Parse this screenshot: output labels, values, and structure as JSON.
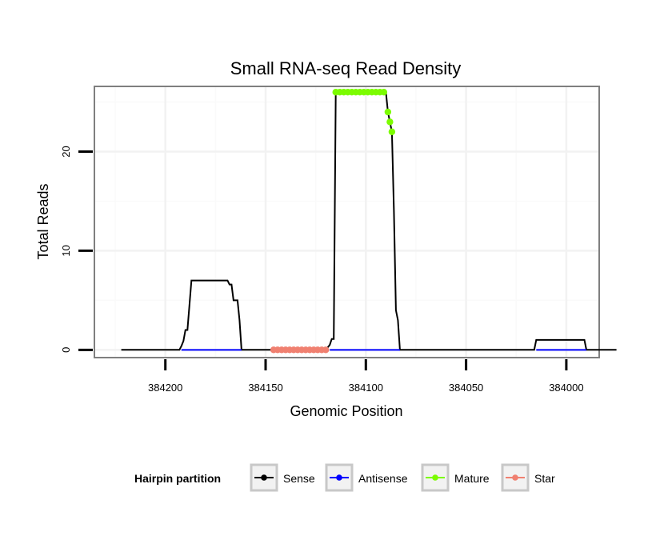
{
  "chart_data": {
    "type": "line",
    "title": "Small RNA-seq Read Density",
    "xlabel": "Genomic Position",
    "ylabel": "Total Reads",
    "xlim_reversed": [
      384235,
      383984
    ],
    "ylim": [
      -0.7,
      26.5
    ],
    "x_ticks": [
      384200,
      384150,
      384100,
      384050,
      384000
    ],
    "x_tick_labels": [
      "384200",
      "384150",
      "384100",
      "384050",
      "384000"
    ],
    "y_ticks": [
      0,
      10,
      20
    ],
    "y_tick_labels": [
      "0",
      "10",
      "20"
    ],
    "grid": true,
    "legend": {
      "title": "Hairpin partition",
      "position": "bottom",
      "entries": [
        {
          "name": "Sense",
          "color": "#000000"
        },
        {
          "name": "Antisense",
          "color": "#0000ff"
        },
        {
          "name": "Mature",
          "color": "#7cfc00"
        },
        {
          "name": "Star",
          "color": "#f08070"
        }
      ]
    },
    "series": [
      {
        "name": "Sense",
        "color": "#000000",
        "style": "line",
        "points": [
          [
            384222,
            0
          ],
          [
            384193,
            0
          ],
          [
            384192,
            0.4
          ],
          [
            384191,
            0.9
          ],
          [
            384190,
            2.0
          ],
          [
            384189,
            2.0
          ],
          [
            384188,
            4.5
          ],
          [
            384187,
            7.0
          ],
          [
            384169,
            7.0
          ],
          [
            384168,
            6.6
          ],
          [
            384167,
            6.6
          ],
          [
            384166,
            5.0
          ],
          [
            384165,
            5.0
          ],
          [
            384164,
            5.0
          ],
          [
            384163,
            3.0
          ],
          [
            384162,
            0
          ],
          [
            384120,
            0
          ],
          [
            384118,
            0.5
          ],
          [
            384117,
            1.1
          ],
          [
            384116,
            1.1
          ],
          [
            384115,
            26.0
          ],
          [
            384090,
            26.0
          ],
          [
            384089,
            24.0
          ],
          [
            384088,
            23.0
          ],
          [
            384087,
            22.0
          ],
          [
            384086,
            14.0
          ],
          [
            384085,
            4.0
          ],
          [
            384084,
            3.0
          ],
          [
            384083,
            0
          ],
          [
            384016,
            0
          ],
          [
            384015,
            1.0
          ],
          [
            383991,
            1.0
          ],
          [
            383990,
            0
          ],
          [
            383975,
            0
          ]
        ]
      },
      {
        "name": "Antisense",
        "color": "#0000ff",
        "style": "line",
        "segments": [
          [
            [
              384192,
              0
            ],
            [
              384162,
              0
            ]
          ],
          [
            [
              384118,
              0
            ],
            [
              384083,
              0
            ]
          ],
          [
            [
              384015,
              0
            ],
            [
              383990,
              0
            ]
          ]
        ]
      },
      {
        "name": "Mature",
        "color": "#7cfc00",
        "style": "points",
        "points": [
          [
            384115,
            26.0
          ],
          [
            384113,
            26.0
          ],
          [
            384111,
            26.0
          ],
          [
            384109,
            26.0
          ],
          [
            384107,
            26.0
          ],
          [
            384105,
            26.0
          ],
          [
            384103,
            26.0
          ],
          [
            384101,
            26.0
          ],
          [
            384099,
            26.0
          ],
          [
            384097,
            26.0
          ],
          [
            384095,
            26.0
          ],
          [
            384093,
            26.0
          ],
          [
            384091,
            26.0
          ],
          [
            384089,
            24.0
          ],
          [
            384088,
            23.0
          ],
          [
            384087,
            22.0
          ]
        ]
      },
      {
        "name": "Star",
        "color": "#f08070",
        "style": "points",
        "points": [
          [
            384146,
            0
          ],
          [
            384144,
            0
          ],
          [
            384142,
            0
          ],
          [
            384140,
            0
          ],
          [
            384138,
            0
          ],
          [
            384136,
            0
          ],
          [
            384134,
            0
          ],
          [
            384132,
            0
          ],
          [
            384130,
            0
          ],
          [
            384128,
            0
          ],
          [
            384126,
            0
          ],
          [
            384124,
            0
          ],
          [
            384122,
            0
          ],
          [
            384120,
            0
          ]
        ]
      }
    ]
  }
}
